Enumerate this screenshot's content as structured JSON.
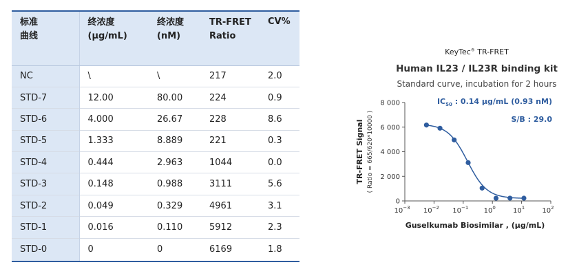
{
  "table": {
    "headers": [
      [
        "标准",
        "曲线"
      ],
      [
        "终浓度",
        "(μg/mL)"
      ],
      [
        "终浓度",
        "(nM)"
      ],
      [
        "TR-FRET",
        "Ratio"
      ],
      [
        "CV%"
      ]
    ],
    "rows": [
      [
        "NC",
        "\\",
        "\\",
        "217",
        "2.0"
      ],
      [
        "STD-7",
        "12.00",
        "80.00",
        "224",
        "0.9"
      ],
      [
        "STD-6",
        "4.000",
        "26.67",
        "228",
        "8.6"
      ],
      [
        "STD-5",
        "1.333",
        "8.889",
        "221",
        "0.3"
      ],
      [
        "STD-4",
        "0.444",
        "2.963",
        "1044",
        "0.0"
      ],
      [
        "STD-3",
        "0.148",
        "0.988",
        "3111",
        "5.6"
      ],
      [
        "STD-2",
        "0.049",
        "0.329",
        "4961",
        "3.1"
      ],
      [
        "STD-1",
        "0.016",
        "0.110",
        "5912",
        "2.3"
      ],
      [
        "STD-0",
        "0",
        "0",
        "6169",
        "1.8"
      ]
    ]
  },
  "chart_data": {
    "type": "scatter",
    "brand": "KeyTec",
    "brand_mark": "®",
    "brand_suffix": " TR-FRET",
    "title": "Human IL23 / IL23R binding kit",
    "subtitle": "Standard curve,  incubation for 2 hours",
    "xlabel": "Guselkumab Biosimilar , (μg/mL)",
    "ylabel": "TR-FRET Signal",
    "ylabel_sub": "( Ratio = 665/620*10000 )",
    "x_scale": "log",
    "xlim": [
      0.001,
      100
    ],
    "ylim": [
      0,
      8000
    ],
    "y_ticks": [
      0,
      2000,
      4000,
      6000,
      8000
    ],
    "y_tick_labels": [
      "0",
      "2 000",
      "4 000",
      "6 000",
      "8 000"
    ],
    "x_tick_exponents": [
      -3,
      -2,
      -1,
      0,
      1,
      2
    ],
    "x_tick_base": "10",
    "annotation_ic50_main": "IC",
    "annotation_ic50_sub": "50",
    "annotation_ic50_value": " : 0.14 μg/mL (0.93 nM)",
    "annotation_sb": "S/B : 29.0",
    "points": [
      {
        "x": 0.0055,
        "y": 6169
      },
      {
        "x": 0.016,
        "y": 5912
      },
      {
        "x": 0.049,
        "y": 4961
      },
      {
        "x": 0.148,
        "y": 3111
      },
      {
        "x": 0.444,
        "y": 1044
      },
      {
        "x": 1.333,
        "y": 221
      },
      {
        "x": 4.0,
        "y": 228
      },
      {
        "x": 12.0,
        "y": 224
      }
    ],
    "fit": {
      "top": 6250,
      "bottom": 200,
      "ic50": 0.14,
      "hill": 1.3
    },
    "colors": {
      "point": "#2f5d9f",
      "line": "#2f5d9f",
      "annotation": "#2f5d9f",
      "axis": "#555555"
    }
  }
}
